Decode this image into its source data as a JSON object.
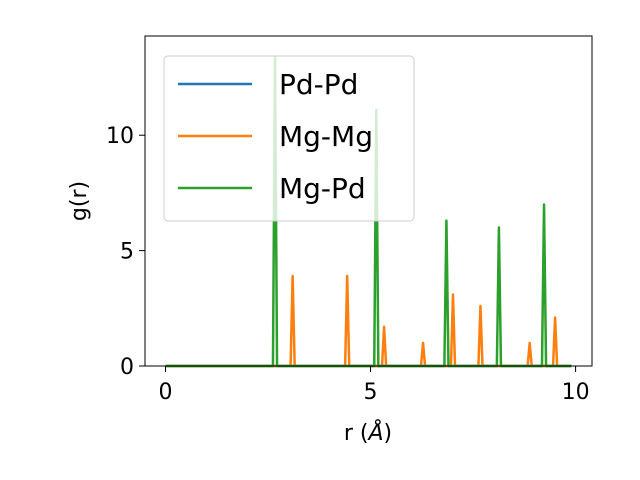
{
  "chart_data": {
    "type": "line",
    "title": "",
    "xlabel": "r (",
    "xlabel_unit": "Å",
    "xlabel_close": ")",
    "ylabel": "g(r)",
    "xlim": [
      -0.5,
      10.4
    ],
    "ylim": [
      0,
      14.3
    ],
    "xticks": [
      0,
      5,
      10
    ],
    "yticks": [
      0,
      5,
      10
    ],
    "grid": false,
    "legend_position": "top-left",
    "series": [
      {
        "name": "Pd-Pd",
        "color": "#1f77b4",
        "points": [
          [
            0,
            0
          ],
          [
            9.9,
            0
          ]
        ]
      },
      {
        "name": "Mg-Mg",
        "color": "#ff7f0e",
        "points": [
          [
            0,
            0
          ],
          [
            3.05,
            0
          ],
          [
            3.1,
            3.9
          ],
          [
            3.15,
            0
          ],
          [
            4.38,
            0
          ],
          [
            4.43,
            3.9
          ],
          [
            4.48,
            0
          ],
          [
            5.28,
            0
          ],
          [
            5.33,
            1.7
          ],
          [
            5.38,
            0
          ],
          [
            6.23,
            0
          ],
          [
            6.28,
            1.0
          ],
          [
            6.33,
            0
          ],
          [
            6.96,
            0
          ],
          [
            7.01,
            3.1
          ],
          [
            7.06,
            0
          ],
          [
            7.63,
            0
          ],
          [
            7.68,
            2.6
          ],
          [
            7.73,
            0
          ],
          [
            8.83,
            0
          ],
          [
            8.88,
            1.0
          ],
          [
            8.93,
            0
          ],
          [
            9.45,
            0
          ],
          [
            9.5,
            2.1
          ],
          [
            9.55,
            0
          ],
          [
            9.9,
            0
          ]
        ]
      },
      {
        "name": "Mg-Pd",
        "color": "#2ca02c",
        "points": [
          [
            0,
            0
          ],
          [
            2.62,
            0
          ],
          [
            2.67,
            13.4
          ],
          [
            2.72,
            0
          ],
          [
            5.09,
            0
          ],
          [
            5.14,
            11.1
          ],
          [
            5.19,
            0
          ],
          [
            6.8,
            0
          ],
          [
            6.85,
            6.3
          ],
          [
            6.9,
            0
          ],
          [
            8.08,
            0
          ],
          [
            8.13,
            6.0
          ],
          [
            8.18,
            0
          ],
          [
            9.18,
            0
          ],
          [
            9.23,
            7.0
          ],
          [
            9.28,
            0
          ],
          [
            9.9,
            0
          ]
        ]
      }
    ]
  }
}
